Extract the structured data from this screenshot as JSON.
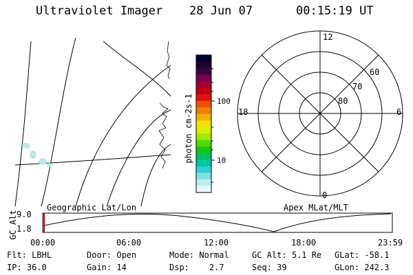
{
  "header": {
    "instrument": "Ultraviolet Imager",
    "date": "28 Jun 07",
    "time": "00:15:19 UT"
  },
  "colorbar": {
    "unit_label": "photon cm-2s-1",
    "ticks": [
      "100",
      "10"
    ],
    "colors": [
      "#000033",
      "#200030",
      "#3a0040",
      "#7a0050",
      "#a00030",
      "#c00010",
      "#e01010",
      "#f05000",
      "#f08000",
      "#f0b000",
      "#f0e000",
      "#d8f000",
      "#a0e800",
      "#50d800",
      "#10c810",
      "#00c060",
      "#00c8a0",
      "#30d0d0",
      "#80e0e0",
      "#c0eeee",
      "#e8f8f8"
    ]
  },
  "polar": {
    "mlt_labels": {
      "top": "12",
      "left": "18",
      "right": "6",
      "bottom": "0"
    },
    "lat_labels": [
      "60",
      "70",
      "80"
    ]
  },
  "timeline": {
    "left_label": "Geographic Lat/Lon",
    "right_label": "Apex MLat/MLT",
    "y_axis_label": "GC Alt",
    "y_ticks": [
      "9.0",
      "1.8"
    ],
    "x_ticks": [
      "00:00",
      "06:00",
      "12:00",
      "18:00",
      "23:59"
    ]
  },
  "status": {
    "row1": [
      {
        "key": "Flt:",
        "value": "LBHL"
      },
      {
        "key": "Door:",
        "value": "Open"
      },
      {
        "key": "Mode:",
        "value": "Normal"
      },
      {
        "key": "GC Alt:",
        "value": "5.1 Re"
      },
      {
        "key": "GLat:",
        "value": "-58.1"
      }
    ],
    "row2": [
      {
        "key": "IP:",
        "value": "36.0"
      },
      {
        "key": "Gain:",
        "value": "14"
      },
      {
        "key": "Dsp:",
        "value": "2.7"
      },
      {
        "key": "Seq:",
        "value": "39"
      },
      {
        "key": "GLon:",
        "value": "242.3"
      }
    ]
  }
}
